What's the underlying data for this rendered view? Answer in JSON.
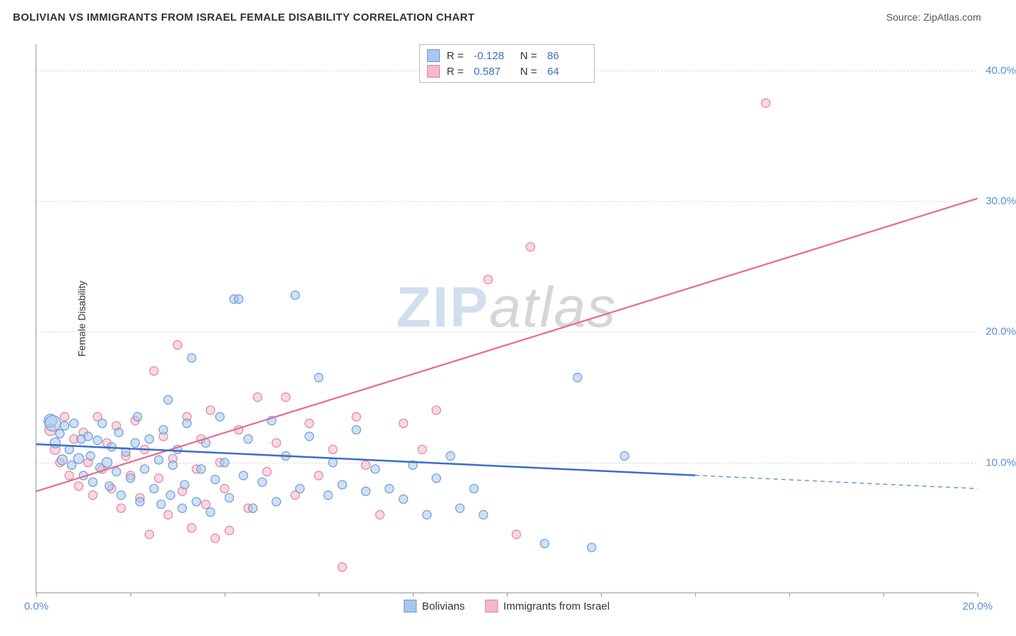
{
  "header": {
    "title": "BOLIVIAN VS IMMIGRANTS FROM ISRAEL FEMALE DISABILITY CORRELATION CHART",
    "source_prefix": "Source: ",
    "source_name": "ZipAtlas.com"
  },
  "ylabel": "Female Disability",
  "watermark": {
    "part1": "ZIP",
    "part2": "atlas"
  },
  "series": {
    "blue": {
      "name": "Bolivians",
      "color_fill": "#a9c6ec",
      "color_stroke": "#6b9bd8",
      "line_color": "#3b6fc7",
      "R": "-0.128",
      "N": "86"
    },
    "pink": {
      "name": "Immigrants from Israel",
      "color_fill": "#f4b9c8",
      "color_stroke": "#e87f9c",
      "line_color": "#e86a8c",
      "R": "0.587",
      "N": "64"
    }
  },
  "legend_labels": {
    "R": "R =",
    "N": "N ="
  },
  "xaxis": {
    "min": 0.0,
    "max": 20.0,
    "ticks": [
      0.0,
      2.0,
      4.0,
      6.0,
      8.0,
      10.0,
      12.0,
      14.0,
      16.0,
      18.0,
      20.0
    ],
    "labels": [
      {
        "v": 0.0,
        "t": "0.0%"
      },
      {
        "v": 20.0,
        "t": "20.0%"
      }
    ],
    "label_color": "#5b8dd6",
    "label_fontsize": 15
  },
  "yaxis": {
    "min": 0.0,
    "max": 42.0,
    "gridlines": [
      10.0,
      20.0,
      30.0,
      40.0
    ],
    "labels": [
      {
        "v": 10.0,
        "t": "10.0%"
      },
      {
        "v": 20.0,
        "t": "20.0%"
      },
      {
        "v": 30.0,
        "t": "30.0%"
      },
      {
        "v": 40.0,
        "t": "40.0%"
      }
    ],
    "label_color": "#5b8dd6",
    "label_fontsize": 15
  },
  "trend_lines": {
    "blue": {
      "x1": 0.0,
      "y1": 11.4,
      "x2": 20.0,
      "y2": 8.0,
      "solid_until_x": 14.0
    },
    "pink": {
      "x1": 0.0,
      "y1": 7.8,
      "x2": 20.0,
      "y2": 30.2
    }
  },
  "points_blue": [
    {
      "x": 0.3,
      "y": 13.2,
      "r": 9
    },
    {
      "x": 0.35,
      "y": 13.0,
      "r": 11
    },
    {
      "x": 0.4,
      "y": 11.5,
      "r": 7
    },
    {
      "x": 0.5,
      "y": 12.2,
      "r": 6
    },
    {
      "x": 0.55,
      "y": 10.2,
      "r": 7
    },
    {
      "x": 0.6,
      "y": 12.8,
      "r": 6
    },
    {
      "x": 0.7,
      "y": 11.0,
      "r": 6
    },
    {
      "x": 0.75,
      "y": 9.8,
      "r": 6
    },
    {
      "x": 0.8,
      "y": 13.0,
      "r": 6
    },
    {
      "x": 0.9,
      "y": 10.3,
      "r": 7
    },
    {
      "x": 0.95,
      "y": 11.8,
      "r": 6
    },
    {
      "x": 1.0,
      "y": 9.0,
      "r": 6
    },
    {
      "x": 1.1,
      "y": 12.0,
      "r": 6
    },
    {
      "x": 1.15,
      "y": 10.5,
      "r": 6
    },
    {
      "x": 1.2,
      "y": 8.5,
      "r": 6
    },
    {
      "x": 1.3,
      "y": 11.7,
      "r": 6
    },
    {
      "x": 1.35,
      "y": 9.6,
      "r": 6
    },
    {
      "x": 1.4,
      "y": 13.0,
      "r": 6
    },
    {
      "x": 1.5,
      "y": 10.0,
      "r": 7
    },
    {
      "x": 1.55,
      "y": 8.2,
      "r": 6
    },
    {
      "x": 1.6,
      "y": 11.2,
      "r": 6
    },
    {
      "x": 1.7,
      "y": 9.3,
      "r": 6
    },
    {
      "x": 1.75,
      "y": 12.3,
      "r": 6
    },
    {
      "x": 1.8,
      "y": 7.5,
      "r": 6
    },
    {
      "x": 1.9,
      "y": 10.8,
      "r": 6
    },
    {
      "x": 2.0,
      "y": 8.8,
      "r": 6
    },
    {
      "x": 2.1,
      "y": 11.5,
      "r": 6
    },
    {
      "x": 2.15,
      "y": 13.5,
      "r": 6
    },
    {
      "x": 2.2,
      "y": 7.0,
      "r": 6
    },
    {
      "x": 2.3,
      "y": 9.5,
      "r": 6
    },
    {
      "x": 2.4,
      "y": 11.8,
      "r": 6
    },
    {
      "x": 2.5,
      "y": 8.0,
      "r": 6
    },
    {
      "x": 2.6,
      "y": 10.2,
      "r": 6
    },
    {
      "x": 2.65,
      "y": 6.8,
      "r": 6
    },
    {
      "x": 2.7,
      "y": 12.5,
      "r": 6
    },
    {
      "x": 2.8,
      "y": 14.8,
      "r": 6
    },
    {
      "x": 2.85,
      "y": 7.5,
      "r": 6
    },
    {
      "x": 2.9,
      "y": 9.8,
      "r": 6
    },
    {
      "x": 3.0,
      "y": 11.0,
      "r": 6
    },
    {
      "x": 3.1,
      "y": 6.5,
      "r": 6
    },
    {
      "x": 3.15,
      "y": 8.3,
      "r": 6
    },
    {
      "x": 3.2,
      "y": 13.0,
      "r": 6
    },
    {
      "x": 3.3,
      "y": 18.0,
      "r": 6
    },
    {
      "x": 3.4,
      "y": 7.0,
      "r": 6
    },
    {
      "x": 3.5,
      "y": 9.5,
      "r": 6
    },
    {
      "x": 3.6,
      "y": 11.5,
      "r": 6
    },
    {
      "x": 3.7,
      "y": 6.2,
      "r": 6
    },
    {
      "x": 3.8,
      "y": 8.7,
      "r": 6
    },
    {
      "x": 3.9,
      "y": 13.5,
      "r": 6
    },
    {
      "x": 4.0,
      "y": 10.0,
      "r": 6
    },
    {
      "x": 4.1,
      "y": 7.3,
      "r": 6
    },
    {
      "x": 4.2,
      "y": 22.5,
      "r": 6
    },
    {
      "x": 4.3,
      "y": 22.5,
      "r": 6
    },
    {
      "x": 4.4,
      "y": 9.0,
      "r": 6
    },
    {
      "x": 4.5,
      "y": 11.8,
      "r": 6
    },
    {
      "x": 4.6,
      "y": 6.5,
      "r": 6
    },
    {
      "x": 4.8,
      "y": 8.5,
      "r": 6
    },
    {
      "x": 5.0,
      "y": 13.2,
      "r": 6
    },
    {
      "x": 5.1,
      "y": 7.0,
      "r": 6
    },
    {
      "x": 5.3,
      "y": 10.5,
      "r": 6
    },
    {
      "x": 5.5,
      "y": 22.8,
      "r": 6
    },
    {
      "x": 5.6,
      "y": 8.0,
      "r": 6
    },
    {
      "x": 5.8,
      "y": 12.0,
      "r": 6
    },
    {
      "x": 6.0,
      "y": 16.5,
      "r": 6
    },
    {
      "x": 6.2,
      "y": 7.5,
      "r": 6
    },
    {
      "x": 6.3,
      "y": 10.0,
      "r": 6
    },
    {
      "x": 6.5,
      "y": 8.3,
      "r": 6
    },
    {
      "x": 6.8,
      "y": 12.5,
      "r": 6
    },
    {
      "x": 7.0,
      "y": 7.8,
      "r": 6
    },
    {
      "x": 7.2,
      "y": 9.5,
      "r": 6
    },
    {
      "x": 7.5,
      "y": 8.0,
      "r": 6
    },
    {
      "x": 7.8,
      "y": 7.2,
      "r": 6
    },
    {
      "x": 8.0,
      "y": 9.8,
      "r": 6
    },
    {
      "x": 8.3,
      "y": 6.0,
      "r": 6
    },
    {
      "x": 8.5,
      "y": 8.8,
      "r": 6
    },
    {
      "x": 8.8,
      "y": 10.5,
      "r": 6
    },
    {
      "x": 9.0,
      "y": 6.5,
      "r": 6
    },
    {
      "x": 9.3,
      "y": 8.0,
      "r": 6
    },
    {
      "x": 9.5,
      "y": 6.0,
      "r": 6
    },
    {
      "x": 10.8,
      "y": 3.8,
      "r": 6
    },
    {
      "x": 11.5,
      "y": 16.5,
      "r": 6
    },
    {
      "x": 11.8,
      "y": 3.5,
      "r": 6
    },
    {
      "x": 12.5,
      "y": 10.5,
      "r": 6
    }
  ],
  "points_pink": [
    {
      "x": 0.3,
      "y": 12.5,
      "r": 8
    },
    {
      "x": 0.4,
      "y": 11.0,
      "r": 7
    },
    {
      "x": 0.5,
      "y": 10.0,
      "r": 6
    },
    {
      "x": 0.6,
      "y": 13.5,
      "r": 6
    },
    {
      "x": 0.7,
      "y": 9.0,
      "r": 6
    },
    {
      "x": 0.8,
      "y": 11.8,
      "r": 6
    },
    {
      "x": 0.9,
      "y": 8.2,
      "r": 6
    },
    {
      "x": 1.0,
      "y": 12.3,
      "r": 6
    },
    {
      "x": 1.1,
      "y": 10.0,
      "r": 6
    },
    {
      "x": 1.2,
      "y": 7.5,
      "r": 6
    },
    {
      "x": 1.3,
      "y": 13.5,
      "r": 6
    },
    {
      "x": 1.4,
      "y": 9.5,
      "r": 6
    },
    {
      "x": 1.5,
      "y": 11.5,
      "r": 6
    },
    {
      "x": 1.6,
      "y": 8.0,
      "r": 6
    },
    {
      "x": 1.7,
      "y": 12.8,
      "r": 6
    },
    {
      "x": 1.8,
      "y": 6.5,
      "r": 6
    },
    {
      "x": 1.9,
      "y": 10.5,
      "r": 6
    },
    {
      "x": 2.0,
      "y": 9.0,
      "r": 6
    },
    {
      "x": 2.1,
      "y": 13.2,
      "r": 6
    },
    {
      "x": 2.2,
      "y": 7.3,
      "r": 6
    },
    {
      "x": 2.3,
      "y": 11.0,
      "r": 6
    },
    {
      "x": 2.4,
      "y": 4.5,
      "r": 6
    },
    {
      "x": 2.5,
      "y": 17.0,
      "r": 6
    },
    {
      "x": 2.6,
      "y": 8.8,
      "r": 6
    },
    {
      "x": 2.7,
      "y": 12.0,
      "r": 6
    },
    {
      "x": 2.8,
      "y": 6.0,
      "r": 6
    },
    {
      "x": 2.9,
      "y": 10.3,
      "r": 6
    },
    {
      "x": 3.0,
      "y": 19.0,
      "r": 6
    },
    {
      "x": 3.1,
      "y": 7.8,
      "r": 6
    },
    {
      "x": 3.2,
      "y": 13.5,
      "r": 6
    },
    {
      "x": 3.3,
      "y": 5.0,
      "r": 6
    },
    {
      "x": 3.4,
      "y": 9.5,
      "r": 6
    },
    {
      "x": 3.5,
      "y": 11.8,
      "r": 6
    },
    {
      "x": 3.6,
      "y": 6.8,
      "r": 6
    },
    {
      "x": 3.7,
      "y": 14.0,
      "r": 6
    },
    {
      "x": 3.8,
      "y": 4.2,
      "r": 6
    },
    {
      "x": 3.9,
      "y": 10.0,
      "r": 6
    },
    {
      "x": 4.0,
      "y": 8.0,
      "r": 6
    },
    {
      "x": 4.1,
      "y": 4.8,
      "r": 6
    },
    {
      "x": 4.3,
      "y": 12.5,
      "r": 6
    },
    {
      "x": 4.5,
      "y": 6.5,
      "r": 6
    },
    {
      "x": 4.7,
      "y": 15.0,
      "r": 6
    },
    {
      "x": 4.9,
      "y": 9.3,
      "r": 6
    },
    {
      "x": 5.1,
      "y": 11.5,
      "r": 6
    },
    {
      "x": 5.3,
      "y": 15.0,
      "r": 6
    },
    {
      "x": 5.5,
      "y": 7.5,
      "r": 6
    },
    {
      "x": 5.8,
      "y": 13.0,
      "r": 6
    },
    {
      "x": 6.0,
      "y": 9.0,
      "r": 6
    },
    {
      "x": 6.3,
      "y": 11.0,
      "r": 6
    },
    {
      "x": 6.5,
      "y": 2.0,
      "r": 6
    },
    {
      "x": 6.8,
      "y": 13.5,
      "r": 6
    },
    {
      "x": 7.0,
      "y": 9.8,
      "r": 6
    },
    {
      "x": 7.3,
      "y": 6.0,
      "r": 6
    },
    {
      "x": 7.8,
      "y": 13.0,
      "r": 6
    },
    {
      "x": 8.2,
      "y": 11.0,
      "r": 6
    },
    {
      "x": 8.5,
      "y": 14.0,
      "r": 6
    },
    {
      "x": 9.6,
      "y": 24.0,
      "r": 6
    },
    {
      "x": 10.2,
      "y": 4.5,
      "r": 6
    },
    {
      "x": 10.5,
      "y": 26.5,
      "r": 6
    },
    {
      "x": 15.5,
      "y": 37.5,
      "r": 6
    }
  ],
  "marker_opacity": 0.55,
  "background_color": "#ffffff",
  "grid_color": "#dddddd"
}
